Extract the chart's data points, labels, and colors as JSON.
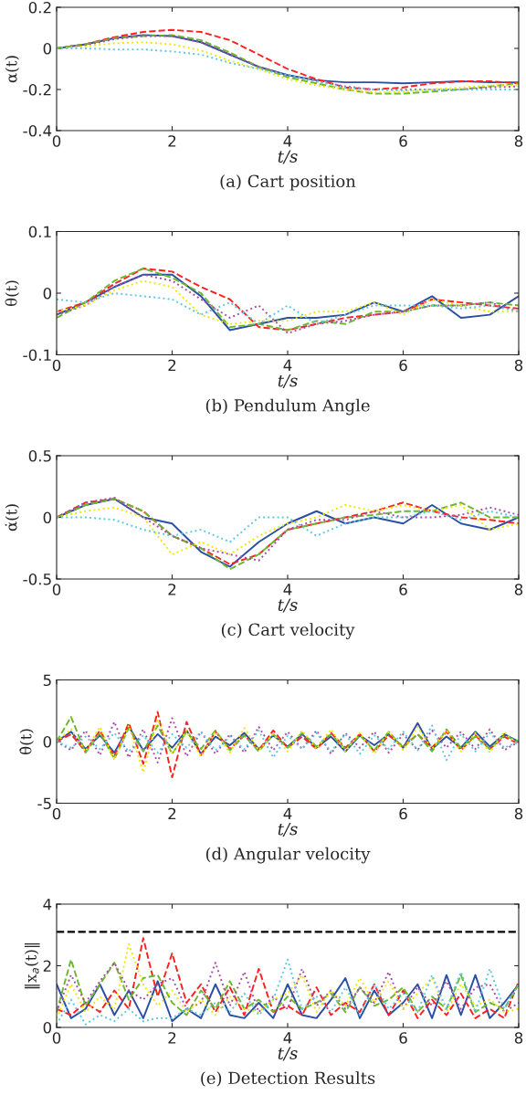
{
  "chart_data": [
    {
      "type": "line",
      "title": "(a) Cart position",
      "xlabel": "t/s",
      "ylabel": "α(t)",
      "xlim": [
        0,
        8
      ],
      "xticks": [
        0,
        2,
        4,
        6,
        8
      ],
      "ylim": [
        -0.4,
        0.2
      ],
      "yticks": [
        -0.4,
        -0.2,
        0,
        0.2
      ],
      "grid": false,
      "x": [
        0,
        0.5,
        1,
        1.5,
        2,
        2.5,
        3,
        3.5,
        4,
        4.5,
        5,
        5.5,
        6,
        6.5,
        7,
        7.5,
        8
      ],
      "series": [
        {
          "color": "#2a4fa3",
          "line_style": "solid",
          "values": [
            0,
            0.02,
            0.05,
            0.065,
            0.06,
            0.03,
            -0.03,
            -0.09,
            -0.13,
            -0.155,
            -0.165,
            -0.165,
            -0.17,
            -0.165,
            -0.16,
            -0.165,
            -0.165
          ]
        },
        {
          "color": "#ff2020",
          "line_style": "dashed",
          "values": [
            0,
            0.02,
            0.055,
            0.08,
            0.09,
            0.08,
            0.04,
            -0.03,
            -0.1,
            -0.15,
            -0.19,
            -0.2,
            -0.19,
            -0.17,
            -0.16,
            -0.16,
            -0.17
          ]
        },
        {
          "color": "#6ab82e",
          "line_style": "dashed",
          "values": [
            0,
            0.02,
            0.05,
            0.06,
            0.065,
            0.04,
            -0.02,
            -0.09,
            -0.14,
            -0.17,
            -0.2,
            -0.22,
            -0.22,
            -0.21,
            -0.2,
            -0.185,
            -0.17
          ]
        },
        {
          "color": "#a84ca8",
          "line_style": "dotted",
          "values": [
            0,
            0.015,
            0.045,
            0.06,
            0.06,
            0.03,
            -0.03,
            -0.09,
            -0.13,
            -0.16,
            -0.185,
            -0.2,
            -0.2,
            -0.2,
            -0.2,
            -0.19,
            -0.185
          ]
        },
        {
          "color": "#f2e600",
          "line_style": "dotted",
          "values": [
            0,
            0.01,
            0.025,
            0.03,
            0.02,
            -0.01,
            -0.06,
            -0.1,
            -0.15,
            -0.18,
            -0.2,
            -0.215,
            -0.21,
            -0.2,
            -0.19,
            -0.18,
            -0.18
          ]
        },
        {
          "color": "#5bc8e0",
          "line_style": "dotted",
          "values": [
            0,
            0.0,
            -0.005,
            -0.005,
            -0.015,
            -0.03,
            -0.07,
            -0.1,
            -0.13,
            -0.16,
            -0.19,
            -0.2,
            -0.205,
            -0.2,
            -0.2,
            -0.2,
            -0.2
          ]
        }
      ]
    },
    {
      "type": "line",
      "title": "(b) Pendulum Angle",
      "xlabel": "t/s",
      "ylabel": "θ(t)",
      "xlim": [
        0,
        8
      ],
      "xticks": [
        0,
        2,
        4,
        6,
        8
      ],
      "ylim": [
        -0.1,
        0.1
      ],
      "yticks": [
        -0.1,
        0,
        0.1
      ],
      "grid": false,
      "x": [
        0,
        0.5,
        1,
        1.5,
        2,
        2.5,
        3,
        3.5,
        4,
        4.5,
        5,
        5.5,
        6,
        6.5,
        7,
        7.5,
        8
      ],
      "series": [
        {
          "color": "#2a4fa3",
          "line_style": "solid",
          "values": [
            -0.035,
            -0.015,
            0.01,
            0.03,
            0.03,
            -0.005,
            -0.06,
            -0.05,
            -0.04,
            -0.04,
            -0.035,
            -0.015,
            -0.03,
            -0.005,
            -0.04,
            -0.035,
            -0.005
          ]
        },
        {
          "color": "#ff2020",
          "line_style": "dashed",
          "values": [
            -0.03,
            -0.015,
            0.015,
            0.04,
            0.035,
            0.01,
            -0.01,
            -0.055,
            -0.06,
            -0.05,
            -0.04,
            -0.035,
            -0.03,
            -0.01,
            -0.015,
            -0.02,
            -0.025
          ]
        },
        {
          "color": "#6ab82e",
          "line_style": "dashed",
          "values": [
            -0.04,
            -0.015,
            0.02,
            0.04,
            0.025,
            0.0,
            -0.055,
            -0.05,
            -0.06,
            -0.045,
            -0.05,
            -0.03,
            -0.03,
            -0.02,
            -0.02,
            -0.015,
            -0.02
          ]
        },
        {
          "color": "#a84ca8",
          "line_style": "dotted",
          "values": [
            -0.035,
            -0.02,
            0.01,
            0.03,
            0.02,
            -0.01,
            -0.04,
            -0.02,
            -0.065,
            -0.05,
            -0.045,
            -0.035,
            -0.03,
            -0.02,
            -0.02,
            -0.015,
            -0.03
          ]
        },
        {
          "color": "#f2e600",
          "line_style": "dotted",
          "values": [
            -0.03,
            -0.02,
            0.005,
            0.02,
            0.01,
            -0.035,
            -0.05,
            -0.045,
            -0.045,
            -0.03,
            -0.03,
            -0.015,
            -0.035,
            -0.01,
            -0.02,
            -0.03,
            -0.03
          ]
        },
        {
          "color": "#5bc8e0",
          "line_style": "dotted",
          "values": [
            -0.01,
            -0.015,
            0.0,
            -0.005,
            -0.01,
            -0.035,
            -0.015,
            -0.05,
            -0.02,
            -0.05,
            -0.035,
            -0.02,
            -0.02,
            -0.02,
            -0.025,
            -0.02,
            -0.03
          ]
        }
      ]
    },
    {
      "type": "line",
      "title": "(c) Cart velocity",
      "xlabel": "t/s",
      "ylabel": "α̇(t)",
      "xlim": [
        0,
        8
      ],
      "xticks": [
        0,
        2,
        4,
        6,
        8
      ],
      "ylim": [
        -0.5,
        0.5
      ],
      "yticks": [
        -0.5,
        0,
        0.5
      ],
      "grid": false,
      "x": [
        0,
        0.5,
        1,
        1.5,
        2,
        2.5,
        3,
        3.5,
        4,
        4.5,
        5,
        5.5,
        6,
        6.5,
        7,
        7.5,
        8
      ],
      "series": [
        {
          "color": "#2a4fa3",
          "line_style": "solid",
          "values": [
            0,
            0.1,
            0.15,
            0.0,
            -0.05,
            -0.28,
            -0.4,
            -0.2,
            -0.05,
            0.05,
            -0.05,
            0.0,
            -0.05,
            0.1,
            -0.05,
            -0.1,
            0.0
          ]
        },
        {
          "color": "#ff2020",
          "line_style": "dashed",
          "values": [
            0,
            0.12,
            0.15,
            0.05,
            -0.15,
            -0.25,
            -0.38,
            -0.3,
            -0.1,
            -0.05,
            0.0,
            0.05,
            0.12,
            0.05,
            0.0,
            -0.02,
            -0.05
          ]
        },
        {
          "color": "#6ab82e",
          "line_style": "dashed",
          "values": [
            0,
            0.1,
            0.15,
            0.05,
            -0.15,
            -0.25,
            -0.42,
            -0.3,
            -0.1,
            -0.05,
            0.0,
            0.02,
            0.05,
            0.05,
            0.12,
            0.0,
            0.0
          ]
        },
        {
          "color": "#a84ca8",
          "line_style": "dotted",
          "values": [
            0,
            0.12,
            0.16,
            0.0,
            -0.15,
            -0.25,
            -0.3,
            -0.35,
            -0.1,
            -0.02,
            -0.02,
            0.05,
            0.0,
            0.0,
            0.02,
            0.08,
            0.02
          ]
        },
        {
          "color": "#f2e600",
          "line_style": "dotted",
          "values": [
            0,
            0.05,
            0.08,
            0.0,
            -0.3,
            -0.2,
            -0.3,
            -0.15,
            -0.05,
            0.0,
            0.1,
            0.05,
            0.1,
            0.05,
            0.1,
            -0.1,
            -0.05
          ]
        },
        {
          "color": "#5bc8e0",
          "line_style": "dotted",
          "values": [
            0,
            0.0,
            -0.02,
            -0.1,
            -0.15,
            -0.1,
            -0.2,
            0.0,
            0.0,
            -0.15,
            -0.05,
            0.0,
            0.0,
            0.05,
            -0.02,
            0.05,
            0.0
          ]
        }
      ]
    },
    {
      "type": "line",
      "title": "(d) Angular velocity",
      "xlabel": "t/s",
      "ylabel": "θ̇(t)",
      "xlim": [
        0,
        8
      ],
      "xticks": [
        0,
        2,
        4,
        6,
        8
      ],
      "ylim": [
        -5,
        5
      ],
      "yticks": [
        -5,
        0,
        5
      ],
      "grid": false,
      "x": [
        0,
        0.25,
        0.5,
        0.75,
        1,
        1.25,
        1.5,
        1.75,
        2,
        2.25,
        2.5,
        2.75,
        3,
        3.25,
        3.5,
        3.75,
        4,
        4.25,
        4.5,
        4.75,
        5,
        5.25,
        5.5,
        5.75,
        6,
        6.25,
        6.5,
        6.75,
        7,
        7.25,
        7.5,
        7.75,
        8
      ],
      "series": [
        {
          "color": "#2a4fa3",
          "line_style": "solid",
          "values": [
            0,
            0.8,
            -0.6,
            0.5,
            -0.9,
            1.2,
            -0.7,
            0.6,
            -0.5,
            0.9,
            -1.0,
            0.4,
            -0.3,
            0.7,
            -0.6,
            0.5,
            -0.4,
            0.6,
            -0.5,
            0.4,
            -0.8,
            0.5,
            -0.3,
            0.6,
            -0.5,
            1.5,
            -0.6,
            0.4,
            -0.5,
            0.8,
            -0.4,
            0.6,
            0
          ]
        },
        {
          "color": "#ff2020",
          "line_style": "dashed",
          "values": [
            0,
            0.6,
            -0.8,
            0.9,
            -1.2,
            1.5,
            -1.8,
            2.4,
            -2.9,
            1.6,
            -1.1,
            0.8,
            -0.6,
            0.5,
            -0.7,
            0.9,
            -0.5,
            0.4,
            -0.6,
            0.7,
            -0.5,
            0.6,
            -0.8,
            0.5,
            -0.4,
            0.6,
            -0.5,
            0.8,
            -0.7,
            0.5,
            -0.6,
            0.4,
            -0.2
          ]
        },
        {
          "color": "#6ab82e",
          "line_style": "dashed",
          "values": [
            0,
            2.0,
            -0.9,
            0.7,
            -1.4,
            1.1,
            -0.8,
            1.3,
            -1.0,
            0.8,
            -0.6,
            0.9,
            -0.7,
            0.5,
            -0.8,
            0.6,
            -0.5,
            0.7,
            -0.4,
            0.6,
            -0.6,
            0.5,
            -0.7,
            0.8,
            -0.5,
            0.6,
            -0.8,
            1.0,
            -0.5,
            0.4,
            -0.6,
            0.5,
            0
          ]
        },
        {
          "color": "#a84ca8",
          "line_style": "dotted",
          "values": [
            0,
            -0.7,
            0.9,
            -1.1,
            1.6,
            -1.3,
            1.0,
            -1.7,
            1.9,
            -1.2,
            0.8,
            -1.0,
            0.6,
            -0.9,
            1.2,
            -0.7,
            0.8,
            -0.6,
            0.9,
            -1.0,
            0.7,
            -0.5,
            0.8,
            -0.9,
            0.6,
            -0.7,
            0.9,
            -0.5,
            0.8,
            -0.6,
            1.0,
            -0.7,
            0
          ]
        },
        {
          "color": "#f2e600",
          "line_style": "dotted",
          "values": [
            0,
            1.0,
            -0.8,
            1.2,
            -1.5,
            1.3,
            -2.5,
            1.8,
            -1.0,
            0.9,
            -1.2,
            0.8,
            -0.9,
            1.1,
            -0.7,
            0.6,
            -0.8,
            0.9,
            -0.6,
            1.0,
            -0.8,
            0.7,
            -1.0,
            0.8,
            -0.7,
            1.2,
            -0.6,
            0.9,
            -0.8,
            0.7,
            -0.9,
            0.8,
            -0.3
          ]
        },
        {
          "color": "#5bc8e0",
          "line_style": "dotted",
          "values": [
            0,
            -0.5,
            0.4,
            -0.6,
            0.7,
            -0.8,
            0.5,
            -0.9,
            0.6,
            -0.5,
            0.8,
            -0.7,
            0.4,
            -0.6,
            0.9,
            -1.3,
            0.5,
            -0.6,
            0.7,
            -0.8,
            0.6,
            -1.0,
            0.5,
            -0.6,
            0.8,
            -0.7,
            1.3,
            -1.5,
            0.6,
            -0.8,
            0.7,
            -0.5,
            0
          ]
        }
      ]
    },
    {
      "type": "line",
      "title": "(e) Detection Results",
      "xlabel": "t/s",
      "ylabel": "‖x$_{a}$(t)‖",
      "xlim": [
        0,
        8
      ],
      "xticks": [
        0,
        2,
        4,
        6,
        8
      ],
      "ylim": [
        0,
        4
      ],
      "yticks": [
        0,
        2,
        4
      ],
      "grid": false,
      "ref_lines": [
        {
          "axis": "y",
          "value": 3.1,
          "color": "#000000",
          "line_style": "dashed"
        }
      ],
      "x": [
        0,
        0.25,
        0.5,
        0.75,
        1,
        1.25,
        1.5,
        1.75,
        2,
        2.25,
        2.5,
        2.75,
        3,
        3.25,
        3.5,
        3.75,
        4,
        4.25,
        4.5,
        4.75,
        5,
        5.25,
        5.5,
        5.75,
        6,
        6.25,
        6.5,
        6.75,
        7,
        7.25,
        7.5,
        7.75,
        8
      ],
      "series": [
        {
          "color": "#2a4fa3",
          "line_style": "solid",
          "values": [
            1.4,
            0.3,
            0.6,
            1.4,
            0.4,
            1.2,
            0.3,
            1.5,
            0.2,
            0.6,
            0.3,
            1.4,
            0.4,
            0.3,
            0.8,
            0.3,
            1.4,
            0.4,
            0.3,
            0.9,
            1.6,
            0.3,
            1.2,
            0.4,
            0.8,
            1.4,
            0.3,
            1.7,
            0.4,
            1.7,
            0.3,
            0.8,
            1.4
          ]
        },
        {
          "color": "#ff2020",
          "line_style": "dashed",
          "values": [
            0.6,
            0.4,
            0.8,
            0.5,
            1.2,
            0.6,
            2.9,
            1.0,
            2.4,
            0.8,
            1.4,
            0.5,
            1.3,
            0.4,
            1.9,
            0.5,
            0.7,
            0.4,
            1.3,
            0.4,
            0.8,
            0.5,
            1.4,
            0.4,
            1.2,
            0.3,
            0.9,
            0.4,
            1.1,
            0.3,
            0.6,
            0.3,
            1.5
          ]
        },
        {
          "color": "#6ab82e",
          "line_style": "dashed",
          "values": [
            0.5,
            2.2,
            0.7,
            1.4,
            2.1,
            0.9,
            1.6,
            1.7,
            0.8,
            0.4,
            1.2,
            0.6,
            1.5,
            0.6,
            0.9,
            0.5,
            1.0,
            0.6,
            0.8,
            1.1,
            0.5,
            1.3,
            0.7,
            0.9,
            1.3,
            0.5,
            1.0,
            0.6,
            1.7,
            0.5,
            0.8,
            0.6,
            1.4
          ]
        },
        {
          "color": "#a84ca8",
          "line_style": "dotted",
          "values": [
            0.5,
            1.7,
            0.8,
            1.5,
            2.1,
            1.2,
            0.9,
            1.4,
            1.6,
            0.6,
            0.8,
            2.1,
            0.7,
            1.8,
            0.5,
            1.0,
            0.6,
            1.9,
            0.7,
            1.2,
            0.6,
            1.3,
            0.8,
            1.8,
            0.6,
            1.3,
            0.7,
            1.5,
            0.6,
            1.3,
            1.4,
            0.5,
            0.8
          ]
        },
        {
          "color": "#f2e600",
          "line_style": "dotted",
          "values": [
            0.3,
            1.4,
            0.5,
            1.0,
            0.6,
            2.7,
            1.4,
            0.7,
            1.2,
            0.5,
            0.9,
            0.4,
            1.0,
            0.6,
            0.5,
            0.9,
            1.1,
            1.7,
            0.5,
            1.2,
            0.7,
            1.6,
            0.8,
            1.5,
            0.6,
            1.1,
            1.6,
            0.5,
            1.4,
            0.7,
            0.9,
            0.5,
            0.6
          ]
        },
        {
          "color": "#5bc8e0",
          "line_style": "dotted",
          "values": [
            0.1,
            0.9,
            0.1,
            0.4,
            0.2,
            0.6,
            0.2,
            0.3,
            0.3,
            0.6,
            0.4,
            0.8,
            0.5,
            1.1,
            0.4,
            0.9,
            2.2,
            0.6,
            1.0,
            0.5,
            1.3,
            0.4,
            1.4,
            0.6,
            1.1,
            0.5,
            1.7,
            0.6,
            1.8,
            0.5,
            1.9,
            0.6,
            1.4
          ]
        }
      ]
    }
  ]
}
